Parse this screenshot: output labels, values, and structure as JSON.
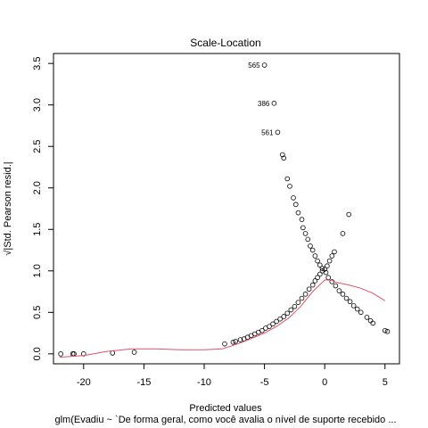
{
  "chart_data": {
    "type": "scatter",
    "title": "Scale-Location",
    "xlabel": "Predicted values",
    "ylabel": "√|Std. Pearson resid.|",
    "subtitle": "glm(Evadiu ~ `De forma geral, como você avalia o nível de suporte recebido ...",
    "xlim": [
      -22.5,
      6.2
    ],
    "ylim": [
      -0.12,
      3.62
    ],
    "xticks": [
      -20,
      -15,
      -10,
      -5,
      0,
      5
    ],
    "yticks": [
      0.0,
      0.5,
      1.0,
      1.5,
      2.0,
      2.5,
      3.0,
      3.5
    ],
    "xtick_labels": [
      "-20",
      "-15",
      "-10",
      "-5",
      "0",
      "5"
    ],
    "ytick_labels": [
      "0.0",
      "0.5",
      "1.0",
      "1.5",
      "2.0",
      "2.5",
      "3.0",
      "3.5"
    ],
    "grid": false,
    "point_color": "#000000",
    "smooth_color": "#DF536B",
    "points": [
      [
        -21.9,
        0.0
      ],
      [
        -20.9,
        0.0
      ],
      [
        -20.8,
        0.0
      ],
      [
        -20.0,
        0.0
      ],
      [
        -17.6,
        0.01
      ],
      [
        -15.8,
        0.02
      ],
      [
        -8.3,
        0.12
      ],
      [
        -7.6,
        0.14
      ],
      [
        -7.4,
        0.15
      ],
      [
        -7.0,
        0.17
      ],
      [
        -6.7,
        0.18
      ],
      [
        -6.4,
        0.2
      ],
      [
        -6.1,
        0.22
      ],
      [
        -5.8,
        0.24
      ],
      [
        -5.5,
        0.26
      ],
      [
        -5.2,
        0.28
      ],
      [
        -4.9,
        0.31
      ],
      [
        -4.6,
        0.33
      ],
      [
        -4.3,
        0.36
      ],
      [
        -4.0,
        0.39
      ],
      [
        -3.7,
        0.42
      ],
      [
        -3.4,
        0.45
      ],
      [
        -3.1,
        0.49
      ],
      [
        -2.8,
        0.53
      ],
      [
        -2.5,
        0.57
      ],
      [
        -2.2,
        0.62
      ],
      [
        -1.9,
        0.67
      ],
      [
        -1.6,
        0.72
      ],
      [
        -1.3,
        0.78
      ],
      [
        -1.0,
        0.83
      ],
      [
        -0.8,
        0.88
      ],
      [
        -0.6,
        0.92
      ],
      [
        -0.4,
        0.96
      ],
      [
        -0.2,
        1.0
      ],
      [
        0.0,
        1.02
      ],
      [
        0.2,
        1.06
      ],
      [
        0.4,
        1.12
      ],
      [
        0.6,
        1.18
      ],
      [
        0.8,
        1.23
      ],
      [
        -5.0,
        3.48
      ],
      [
        -4.2,
        3.02
      ],
      [
        -3.9,
        2.67
      ],
      [
        -3.5,
        2.4
      ],
      [
        -3.4,
        2.36
      ],
      [
        -3.1,
        2.11
      ],
      [
        -2.9,
        2.02
      ],
      [
        -2.6,
        1.88
      ],
      [
        -2.4,
        1.8
      ],
      [
        -2.2,
        1.7
      ],
      [
        -1.9,
        1.62
      ],
      [
        -1.8,
        1.52
      ],
      [
        -1.6,
        1.45
      ],
      [
        -1.4,
        1.38
      ],
      [
        -1.2,
        1.3
      ],
      [
        -1.0,
        1.25
      ],
      [
        -0.8,
        1.18
      ],
      [
        -0.6,
        1.12
      ],
      [
        -0.4,
        1.07
      ],
      [
        -0.2,
        1.03
      ],
      [
        0.1,
        0.98
      ],
      [
        0.3,
        0.92
      ],
      [
        0.6,
        0.87
      ],
      [
        0.9,
        0.82
      ],
      [
        1.2,
        0.76
      ],
      [
        1.5,
        0.72
      ],
      [
        1.8,
        0.67
      ],
      [
        2.1,
        0.63
      ],
      [
        2.4,
        0.58
      ],
      [
        2.7,
        0.54
      ],
      [
        3.0,
        0.5
      ],
      [
        3.5,
        0.44
      ],
      [
        3.8,
        0.4
      ],
      [
        4.0,
        0.37
      ],
      [
        5.0,
        0.28
      ],
      [
        5.2,
        0.27
      ],
      [
        1.5,
        1.45
      ],
      [
        2.0,
        1.68
      ]
    ],
    "labeled_points": [
      {
        "label": "565",
        "x": -5.0,
        "y": 3.48
      },
      {
        "label": "386",
        "x": -4.2,
        "y": 3.02
      },
      {
        "label": "561",
        "x": -3.9,
        "y": 2.67
      }
    ],
    "smooth_line": [
      [
        -22.0,
        -0.04
      ],
      [
        -20.0,
        -0.02
      ],
      [
        -18.0,
        0.03
      ],
      [
        -16.0,
        0.06
      ],
      [
        -14.0,
        0.06
      ],
      [
        -12.0,
        0.05
      ],
      [
        -10.0,
        0.05
      ],
      [
        -8.5,
        0.06
      ],
      [
        -7.0,
        0.13
      ],
      [
        -6.0,
        0.19
      ],
      [
        -5.0,
        0.25
      ],
      [
        -4.0,
        0.33
      ],
      [
        -3.0,
        0.43
      ],
      [
        -2.0,
        0.57
      ],
      [
        -1.0,
        0.75
      ],
      [
        0.0,
        0.89
      ],
      [
        0.5,
        0.89
      ],
      [
        1.0,
        0.86
      ],
      [
        2.0,
        0.83
      ],
      [
        3.0,
        0.79
      ],
      [
        4.0,
        0.73
      ],
      [
        5.0,
        0.64
      ]
    ]
  }
}
